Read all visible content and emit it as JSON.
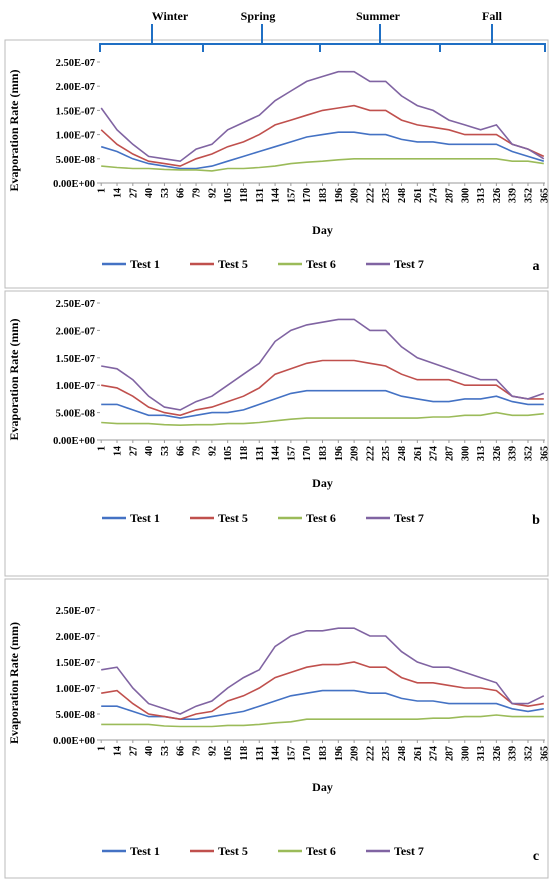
{
  "chart_data": [
    {
      "type": "line",
      "annotations": [
        "Winter",
        "Spring",
        "Summer",
        "Fall"
      ],
      "panel_label": "a",
      "x_label": "Day",
      "y_label": "Evaporation Rate (mm)",
      "x": [
        1,
        14,
        27,
        40,
        53,
        66,
        79,
        92,
        105,
        118,
        131,
        144,
        157,
        170,
        183,
        196,
        209,
        222,
        235,
        248,
        261,
        274,
        287,
        300,
        313,
        326,
        339,
        352,
        365
      ],
      "xlim": [
        0,
        366
      ],
      "xticks": [
        1,
        14,
        27,
        40,
        53,
        66,
        79,
        92,
        105,
        118,
        131,
        144,
        157,
        170,
        183,
        196,
        209,
        222,
        235,
        248,
        261,
        274,
        287,
        300,
        313,
        326,
        339,
        352,
        365
      ],
      "ylim": [
        0,
        2.5e-07
      ],
      "yticks": [
        {
          "value": 0,
          "label": "0.00E+00"
        },
        {
          "value": 5e-08,
          "label": "5.00E-08"
        },
        {
          "value": 1e-07,
          "label": "1.00E-07"
        },
        {
          "value": 1.5e-07,
          "label": "1.50E-07"
        },
        {
          "value": 2e-07,
          "label": "2.00E-07"
        },
        {
          "value": 2.5e-07,
          "label": "2.50E-07"
        }
      ],
      "legend": "bottom",
      "series": [
        {
          "name": "Test 1",
          "color": "#4472c4",
          "values": [
            7.5e-08,
            6.5e-08,
            5e-08,
            4e-08,
            3.5e-08,
            3e-08,
            3e-08,
            3.5e-08,
            4.5e-08,
            5.5e-08,
            6.5e-08,
            7.5e-08,
            8.5e-08,
            9.5e-08,
            1e-07,
            1.05e-07,
            1.05e-07,
            1e-07,
            1e-07,
            9e-08,
            8.5e-08,
            8.5e-08,
            8e-08,
            8e-08,
            8e-08,
            8e-08,
            6.5e-08,
            5.5e-08,
            4.5e-08
          ]
        },
        {
          "name": "Test 5",
          "color": "#c0504d",
          "values": [
            1.1e-07,
            8e-08,
            6e-08,
            4.5e-08,
            4e-08,
            3.5e-08,
            5e-08,
            6e-08,
            7.5e-08,
            8.5e-08,
            1e-07,
            1.2e-07,
            1.3e-07,
            1.4e-07,
            1.5e-07,
            1.55e-07,
            1.6e-07,
            1.5e-07,
            1.5e-07,
            1.3e-07,
            1.2e-07,
            1.15e-07,
            1.1e-07,
            1e-07,
            1e-07,
            1e-07,
            8e-08,
            7e-08,
            5.5e-08
          ]
        },
        {
          "name": "Test 6",
          "color": "#9bbb59",
          "values": [
            3.5e-08,
            3.2e-08,
            3e-08,
            3e-08,
            2.8e-08,
            2.7e-08,
            2.7e-08,
            2.5e-08,
            3e-08,
            3e-08,
            3.2e-08,
            3.5e-08,
            4e-08,
            4.3e-08,
            4.5e-08,
            4.8e-08,
            5e-08,
            5e-08,
            5e-08,
            5e-08,
            5e-08,
            5e-08,
            5e-08,
            5e-08,
            5e-08,
            5e-08,
            4.5e-08,
            4.5e-08,
            4e-08
          ]
        },
        {
          "name": "Test 7",
          "color": "#8064a2",
          "values": [
            1.55e-07,
            1.1e-07,
            8e-08,
            5.5e-08,
            5e-08,
            4.5e-08,
            7e-08,
            8e-08,
            1.1e-07,
            1.25e-07,
            1.4e-07,
            1.7e-07,
            1.9e-07,
            2.1e-07,
            2.2e-07,
            2.3e-07,
            2.3e-07,
            2.1e-07,
            2.1e-07,
            1.8e-07,
            1.6e-07,
            1.5e-07,
            1.3e-07,
            1.2e-07,
            1.1e-07,
            1.2e-07,
            8e-08,
            7e-08,
            5e-08
          ]
        }
      ]
    },
    {
      "type": "line",
      "panel_label": "b",
      "x_label": "Day",
      "y_label": "Evaporation Rate (mm)",
      "x": [
        1,
        14,
        27,
        40,
        53,
        66,
        79,
        92,
        105,
        118,
        131,
        144,
        157,
        170,
        183,
        196,
        209,
        222,
        235,
        248,
        261,
        274,
        287,
        300,
        313,
        326,
        339,
        352,
        365
      ],
      "xlim": [
        0,
        366
      ],
      "xticks": [
        1,
        14,
        27,
        40,
        53,
        66,
        79,
        92,
        105,
        118,
        131,
        144,
        157,
        170,
        183,
        196,
        209,
        222,
        235,
        248,
        261,
        274,
        287,
        300,
        313,
        326,
        339,
        352,
        365
      ],
      "ylim": [
        0,
        2.5e-07
      ],
      "yticks": [
        {
          "value": 0,
          "label": "0.00E+00"
        },
        {
          "value": 5e-08,
          "label": "5.00E-08"
        },
        {
          "value": 1e-07,
          "label": "1.00E-07"
        },
        {
          "value": 1.5e-07,
          "label": "1.50E-07"
        },
        {
          "value": 2e-07,
          "label": "2.00E-07"
        },
        {
          "value": 2.5e-07,
          "label": "2.50E-07"
        }
      ],
      "legend": "bottom",
      "series": [
        {
          "name": "Test 1",
          "color": "#4472c4",
          "values": [
            6.5e-08,
            6.5e-08,
            5.5e-08,
            4.5e-08,
            4.5e-08,
            4e-08,
            4.5e-08,
            5e-08,
            5e-08,
            5.5e-08,
            6.5e-08,
            7.5e-08,
            8.5e-08,
            9e-08,
            9e-08,
            9e-08,
            9e-08,
            9e-08,
            9e-08,
            8e-08,
            7.5e-08,
            7e-08,
            7e-08,
            7.5e-08,
            7.5e-08,
            8e-08,
            7e-08,
            6.5e-08,
            6.5e-08
          ]
        },
        {
          "name": "Test 5",
          "color": "#c0504d",
          "values": [
            1e-07,
            9.5e-08,
            8e-08,
            6e-08,
            5e-08,
            4.5e-08,
            5.5e-08,
            6e-08,
            7e-08,
            8e-08,
            9.5e-08,
            1.2e-07,
            1.3e-07,
            1.4e-07,
            1.45e-07,
            1.45e-07,
            1.45e-07,
            1.4e-07,
            1.35e-07,
            1.2e-07,
            1.1e-07,
            1.1e-07,
            1.1e-07,
            1e-07,
            1e-07,
            1e-07,
            8e-08,
            7.5e-08,
            7.5e-08
          ]
        },
        {
          "name": "Test 6",
          "color": "#9bbb59",
          "values": [
            3.2e-08,
            3e-08,
            3e-08,
            3e-08,
            2.8e-08,
            2.7e-08,
            2.8e-08,
            2.8e-08,
            3e-08,
            3e-08,
            3.2e-08,
            3.5e-08,
            3.8e-08,
            4e-08,
            4e-08,
            4e-08,
            4e-08,
            4e-08,
            4e-08,
            4e-08,
            4e-08,
            4.2e-08,
            4.2e-08,
            4.5e-08,
            4.5e-08,
            5e-08,
            4.5e-08,
            4.5e-08,
            4.8e-08
          ]
        },
        {
          "name": "Test 7",
          "color": "#8064a2",
          "values": [
            1.35e-07,
            1.3e-07,
            1.1e-07,
            8e-08,
            6e-08,
            5.5e-08,
            7e-08,
            8e-08,
            1e-07,
            1.2e-07,
            1.4e-07,
            1.8e-07,
            2e-07,
            2.1e-07,
            2.15e-07,
            2.2e-07,
            2.2e-07,
            2e-07,
            2e-07,
            1.7e-07,
            1.5e-07,
            1.4e-07,
            1.3e-07,
            1.2e-07,
            1.1e-07,
            1.1e-07,
            8e-08,
            7.5e-08,
            8.5e-08
          ]
        }
      ]
    },
    {
      "type": "line",
      "panel_label": "c",
      "x_label": "Day",
      "y_label": "Evaporation Rate (mm)",
      "x": [
        1,
        14,
        27,
        40,
        53,
        66,
        79,
        92,
        105,
        118,
        131,
        144,
        157,
        170,
        183,
        196,
        209,
        222,
        235,
        248,
        261,
        274,
        287,
        300,
        313,
        326,
        339,
        352,
        365
      ],
      "xlim": [
        0,
        366
      ],
      "xticks": [
        1,
        14,
        27,
        40,
        53,
        66,
        79,
        92,
        105,
        118,
        131,
        144,
        157,
        170,
        183,
        196,
        209,
        222,
        235,
        248,
        261,
        274,
        287,
        300,
        313,
        326,
        339,
        352,
        365
      ],
      "ylim": [
        0,
        2.5e-07
      ],
      "yticks": [
        {
          "value": 0,
          "label": "0.00E+00"
        },
        {
          "value": 5e-08,
          "label": "5.00E-08"
        },
        {
          "value": 1e-07,
          "label": "1.00E-07"
        },
        {
          "value": 1.5e-07,
          "label": "1.50E-07"
        },
        {
          "value": 2e-07,
          "label": "2.00E-07"
        },
        {
          "value": 2.5e-07,
          "label": "2.50E-07"
        }
      ],
      "legend": "bottom",
      "series": [
        {
          "name": "Test 1",
          "color": "#4472c4",
          "values": [
            6.5e-08,
            6.5e-08,
            5.5e-08,
            4.5e-08,
            4.5e-08,
            4e-08,
            4e-08,
            4.5e-08,
            5e-08,
            5.5e-08,
            6.5e-08,
            7.5e-08,
            8.5e-08,
            9e-08,
            9.5e-08,
            9.5e-08,
            9.5e-08,
            9e-08,
            9e-08,
            8e-08,
            7.5e-08,
            7.5e-08,
            7e-08,
            7e-08,
            7e-08,
            7e-08,
            6e-08,
            5.5e-08,
            6e-08
          ]
        },
        {
          "name": "Test 5",
          "color": "#c0504d",
          "values": [
            9e-08,
            9.5e-08,
            7e-08,
            5e-08,
            4.5e-08,
            4e-08,
            5e-08,
            5.5e-08,
            7.5e-08,
            8.5e-08,
            1e-07,
            1.2e-07,
            1.3e-07,
            1.4e-07,
            1.45e-07,
            1.45e-07,
            1.5e-07,
            1.4e-07,
            1.4e-07,
            1.2e-07,
            1.1e-07,
            1.1e-07,
            1.05e-07,
            1e-07,
            1e-07,
            9.5e-08,
            7e-08,
            6.5e-08,
            7e-08
          ]
        },
        {
          "name": "Test 6",
          "color": "#9bbb59",
          "values": [
            3e-08,
            3e-08,
            3e-08,
            3e-08,
            2.7e-08,
            2.6e-08,
            2.6e-08,
            2.6e-08,
            2.8e-08,
            2.8e-08,
            3e-08,
            3.3e-08,
            3.5e-08,
            4e-08,
            4e-08,
            4e-08,
            4e-08,
            4e-08,
            4e-08,
            4e-08,
            4e-08,
            4.2e-08,
            4.2e-08,
            4.5e-08,
            4.5e-08,
            4.8e-08,
            4.5e-08,
            4.5e-08,
            4.5e-08
          ]
        },
        {
          "name": "Test 7",
          "color": "#8064a2",
          "values": [
            1.35e-07,
            1.4e-07,
            1e-07,
            7e-08,
            6e-08,
            5e-08,
            6.5e-08,
            7.5e-08,
            1e-07,
            1.2e-07,
            1.35e-07,
            1.8e-07,
            2e-07,
            2.1e-07,
            2.1e-07,
            2.15e-07,
            2.15e-07,
            2e-07,
            2e-07,
            1.7e-07,
            1.5e-07,
            1.4e-07,
            1.4e-07,
            1.3e-07,
            1.2e-07,
            1.1e-07,
            7e-08,
            7e-08,
            8.5e-08
          ]
        }
      ]
    }
  ]
}
